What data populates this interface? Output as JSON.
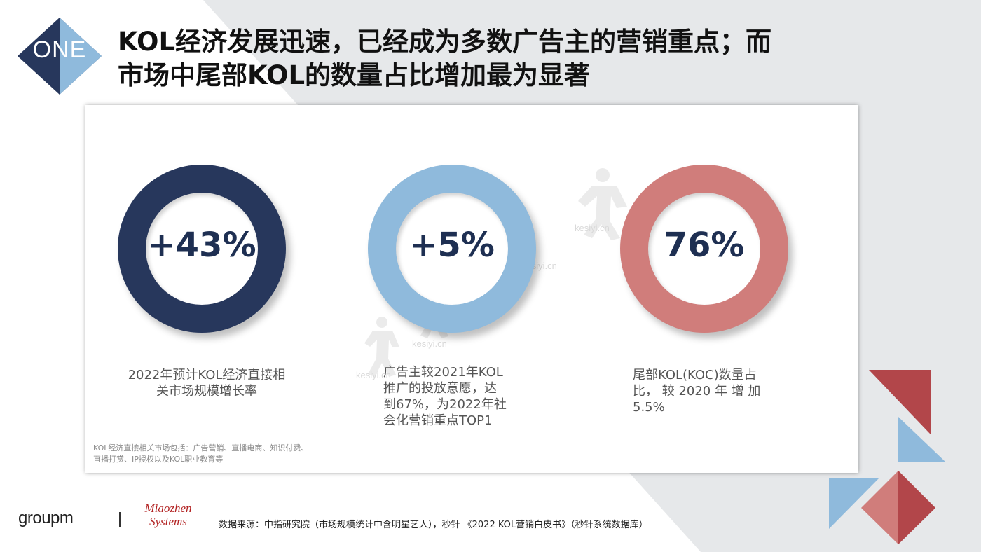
{
  "badge": {
    "text": "ONE"
  },
  "title": {
    "line1": "KOL经济发展迅速，已经成为多数广告主的营销重点；而",
    "line2": "市场中尾部KOL的数量占比增加最为显著"
  },
  "stats": [
    {
      "value": "+43%",
      "ring_color": "#27375c",
      "desc_lines": [
        "2022年预计KOL经济直接相",
        "关市场规模增长率"
      ]
    },
    {
      "value": "+5%",
      "ring_color": "#8fbadc",
      "desc_lines": [
        "广告主较2021年KOL",
        "推广的投放意愿，达",
        "到67%，为2022年社",
        "会化营销重点TOP1"
      ]
    },
    {
      "value": "76%",
      "ring_color": "#d07d7b",
      "desc_lines": [
        "尾部KOL(KOC)数量占",
        "比， 较 2020 年 增 加",
        "5.5%"
      ]
    }
  ],
  "footnote": {
    "line1": "KOL经济直接相关市场包括：广告营销、直播电商、知识付费、",
    "line2": "直播打赏、IP授权以及KOL职业教育等"
  },
  "watermark": {
    "text": "kesiyi.cn"
  },
  "footer": {
    "logo_groupm": "groupm",
    "logo_mz_line1": "Miaozhen",
    "logo_mz_line2": "Systems",
    "source": "数据来源：中指研究院（市场规模统计中含明星艺人），秒针 《2022 KOL营销白皮书》（秒针系统数据库）"
  },
  "colors": {
    "navy": "#27375c",
    "light_blue": "#8fbadc",
    "salmon": "#d07d7b",
    "dark_red": "#b2464a"
  }
}
